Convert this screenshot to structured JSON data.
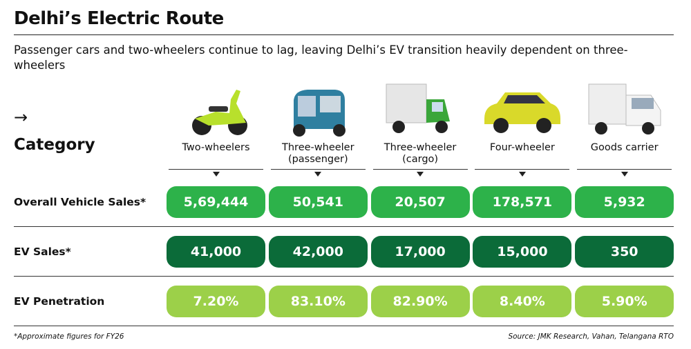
{
  "header": {
    "title": "Delhi’s Electric Route",
    "subtitle": "Passenger cars and two-wheelers continue to lag, leaving Delhi’s EV transition heavily dependent on three-wheelers"
  },
  "table": {
    "arrow": "→",
    "corner": "Category",
    "columns": [
      "Two-wheelers",
      "Three-wheeler (passenger)",
      "Three-wheeler (cargo)",
      "Four-wheeler",
      "Goods carrier"
    ],
    "rows": [
      {
        "label": "Overall Vehicle Sales*",
        "color": "#2db24a",
        "cells": [
          "5,69,444",
          "50,541",
          "20,507",
          "178,571",
          "5,932"
        ]
      },
      {
        "label": "EV Sales*",
        "color": "#0b6b39",
        "cells": [
          "41,000",
          "42,000",
          "17,000",
          "15,000",
          "350"
        ]
      },
      {
        "label": "EV Penetration",
        "color": "#9cd049",
        "cells": [
          "7.20%",
          "83.10%",
          "82.90%",
          "8.40%",
          "5.90%"
        ]
      }
    ]
  },
  "footer": {
    "note": "*Approximate figures for FY26",
    "source": "Source: JMK Research, Vahan, Telangana RTO"
  }
}
